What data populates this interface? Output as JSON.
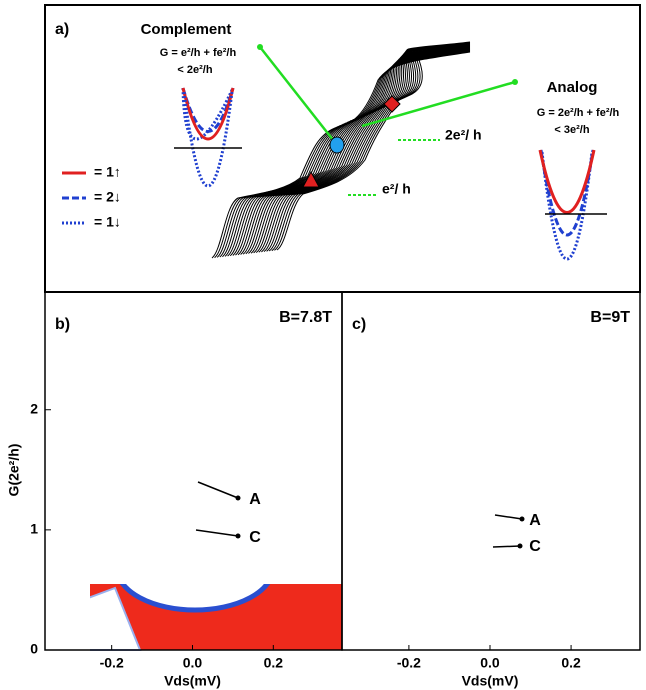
{
  "panel_a": {
    "label": "a)",
    "complement": {
      "title": "Complement",
      "formula": "G = e²/h + fe²/h",
      "bound": "< 2e²/h"
    },
    "analog": {
      "title": "Analog",
      "formula": "G = 2e²/h + fe²/h",
      "bound": "< 3e²/h"
    },
    "plateaus": [
      "2e²/ h",
      "e²/ h"
    ],
    "legend": [
      {
        "label": "= 1↑",
        "color": "#e02020",
        "style": "solid"
      },
      {
        "label": "= 2↓",
        "color": "#2040d0",
        "style": "dashed"
      },
      {
        "label": "= 1↓",
        "color": "#2040d0",
        "style": "dotted"
      }
    ]
  },
  "panels": [
    {
      "label": "b)",
      "field": "B=7.8T",
      "markers": [
        "A",
        "C"
      ]
    },
    {
      "label": "c)",
      "field": "B=9T",
      "markers": [
        "A",
        "C"
      ]
    }
  ],
  "axes": {
    "ylabel": "G(2e²/h)",
    "xlabel": "Vds(mV)",
    "ylim": [
      0,
      2.98
    ],
    "yticks": [
      0,
      1,
      2
    ],
    "xlim": [
      -0.365,
      0.37
    ],
    "xticks": [
      -0.2,
      {
        "value": 0,
        "label": "0.0"
      },
      0.2
    ]
  }
}
